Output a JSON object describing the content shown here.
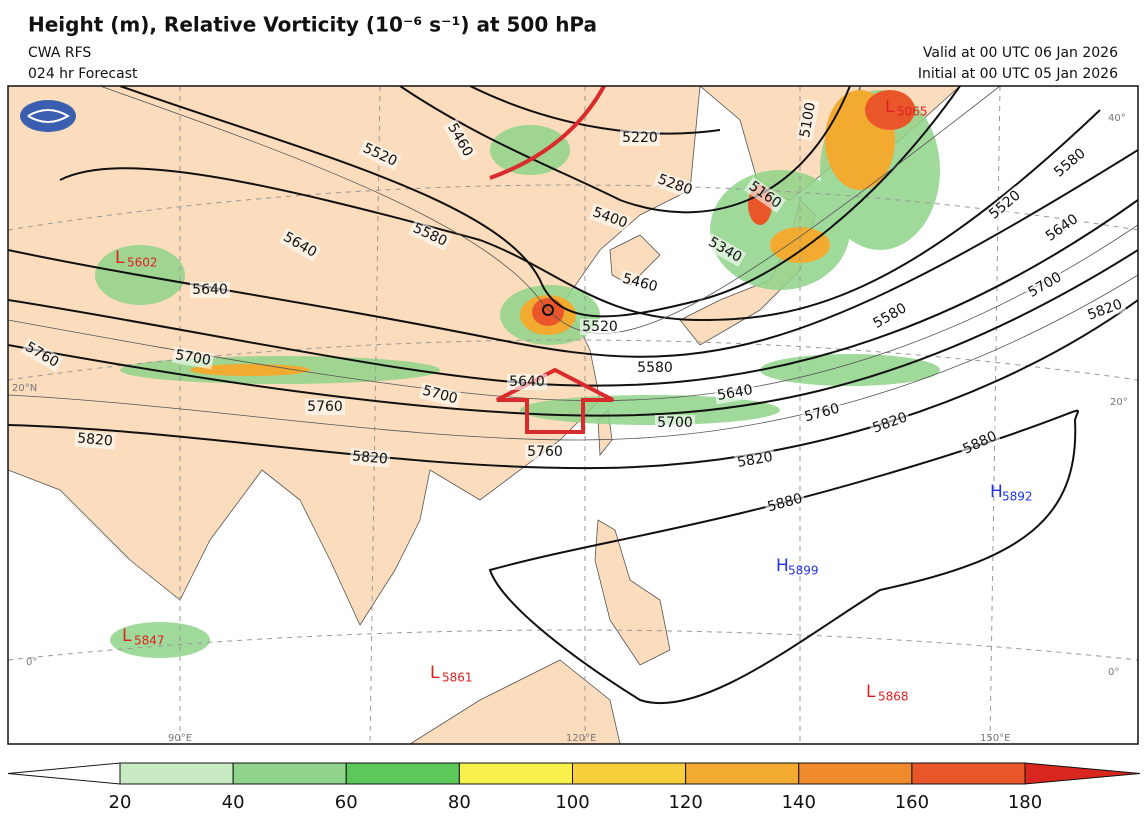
{
  "header": {
    "title": "Height (m), Relative Vorticity (10⁻⁶ s⁻¹) at 500 hPa",
    "model": "CWA RFS",
    "forecast": "024 hr Forecast",
    "valid": "Valid at 00 UTC 06 Jan 2026",
    "initial": "Initial at 00 UTC 05 Jan 2026"
  },
  "contour_labels": [
    "5460",
    "5520",
    "5220",
    "5280",
    "5100",
    "5160",
    "5400",
    "5340",
    "5580",
    "5640",
    "5640",
    "5460",
    "5520",
    "5580",
    "5640",
    "5700",
    "5700",
    "5640",
    "5760",
    "5700",
    "5760",
    "5820",
    "5820",
    "5760",
    "5820",
    "5820",
    "5880",
    "5880",
    "5580",
    "5700",
    "5640",
    "5520",
    "5580",
    "5820",
    "5760"
  ],
  "centers": [
    {
      "letter": "L",
      "value": "5602"
    },
    {
      "letter": "L",
      "value": "5065"
    },
    {
      "letter": "H",
      "value": "5892"
    },
    {
      "letter": "H",
      "value": "5899"
    },
    {
      "letter": "L",
      "value": "5847"
    },
    {
      "letter": "L",
      "value": "5861"
    },
    {
      "letter": "L",
      "value": "5868"
    }
  ],
  "geo_labels": [
    "20°N",
    "20°",
    "40°",
    "0°",
    "0°",
    "90°E",
    "120°E",
    "150°E"
  ],
  "colorbar": {
    "ticks": [
      20,
      40,
      60,
      80,
      100,
      120,
      140,
      160,
      180
    ],
    "colors": [
      "#ffffff",
      "#c9ebc4",
      "#8fd48a",
      "#5cc85a",
      "#f7ef4a",
      "#f6cf3a",
      "#f2ab30",
      "#ee8a2c",
      "#e8562a",
      "#d9271f"
    ]
  }
}
